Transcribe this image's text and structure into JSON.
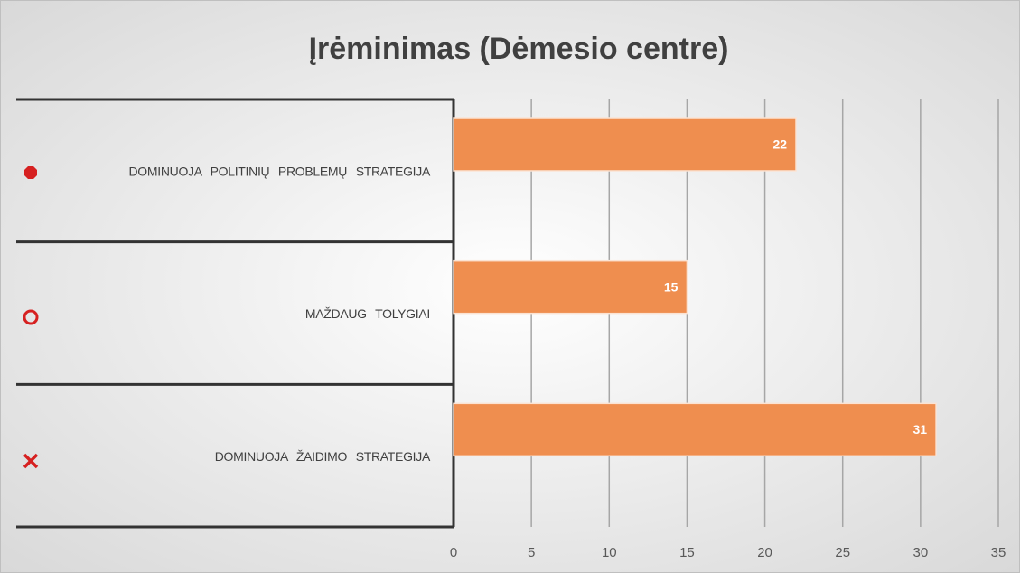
{
  "chart_data": {
    "type": "hbar",
    "title": "Įrėminimas  (Dėmesio centre)",
    "categories": [
      "DOMINUOJA POLITINIŲ PROBLEMŲ STRATEGIJA",
      "MAŽDAUG TOLYGIAI",
      "DOMINUOJA ŽAIDIMO STRATEGIJA"
    ],
    "values": [
      22,
      15,
      31
    ],
    "color": "#ef8e4f",
    "xlim": [
      0,
      35
    ],
    "xticks": [
      0,
      5,
      10,
      15,
      20,
      25,
      30,
      35
    ],
    "grid": true
  }
}
